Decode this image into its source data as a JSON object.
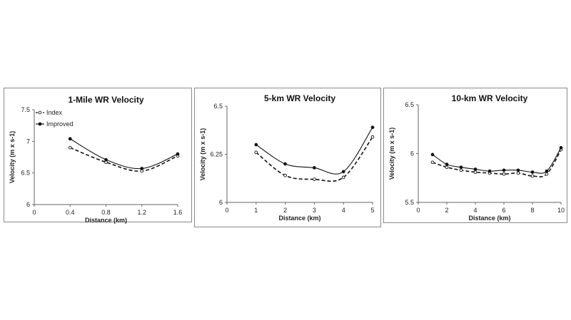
{
  "chart_data": [
    {
      "type": "line",
      "title": "1-Mile WR Velocity",
      "xlabel": "Distance (km)",
      "ylabel": "Velocity (m x s-1)",
      "xlim": [
        0,
        1.6
      ],
      "ylim": [
        6,
        7.5
      ],
      "xticks": [
        "0",
        "0.4",
        "0.8",
        "1.2",
        "1.6"
      ],
      "yticks": [
        "6",
        "6.5",
        "7",
        "7.5"
      ],
      "legend": "top-left",
      "series": [
        {
          "name": "Index",
          "style": "dashed",
          "marker": "open-circle",
          "x": [
            0.4,
            0.8,
            1.2,
            1.6
          ],
          "y": [
            6.9,
            6.67,
            6.53,
            6.77
          ]
        },
        {
          "name": "Improved",
          "style": "solid",
          "marker": "filled-circle",
          "x": [
            0.4,
            0.8,
            1.2,
            1.6
          ],
          "y": [
            7.04,
            6.71,
            6.57,
            6.8
          ]
        }
      ]
    },
    {
      "type": "line",
      "title": "5-km WR Velocity",
      "xlabel": "Distance (km)",
      "ylabel": "Velocity (m x s-1)",
      "xlim": [
        0,
        5
      ],
      "ylim": [
        6,
        6.5
      ],
      "xticks": [
        "0",
        "1",
        "2",
        "3",
        "4",
        "5"
      ],
      "yticks": [
        "6",
        "6.25",
        "6.5"
      ],
      "legend": "none",
      "series": [
        {
          "name": "",
          "style": "dashed",
          "marker": "open-circle",
          "x": [
            1,
            2,
            3,
            4,
            5
          ],
          "y": [
            6.26,
            6.14,
            6.12,
            6.13,
            6.34
          ]
        },
        {
          "name": "",
          "style": "solid",
          "marker": "filled-circle",
          "x": [
            1,
            2,
            3,
            4,
            5
          ],
          "y": [
            6.3,
            6.2,
            6.18,
            6.16,
            6.39
          ]
        }
      ]
    },
    {
      "type": "line",
      "title": "10-km WR Velocity",
      "xlabel": "Distance (km)",
      "ylabel": "Velocity (m x s-1)",
      "xlim": [
        0,
        10
      ],
      "ylim": [
        5.5,
        6.5
      ],
      "xticks": [
        "0",
        "2",
        "4",
        "6",
        "8",
        "10"
      ],
      "yticks": [
        "5.5",
        "6",
        "6.5"
      ],
      "legend": "none",
      "series": [
        {
          "name": "",
          "style": "dashed",
          "marker": "open-circle",
          "x": [
            1,
            2,
            3,
            4,
            5,
            6,
            7,
            8,
            9,
            10
          ],
          "y": [
            5.91,
            5.86,
            5.83,
            5.81,
            5.8,
            5.79,
            5.8,
            5.77,
            5.79,
            6.04
          ]
        },
        {
          "name": "",
          "style": "solid",
          "marker": "filled-circle",
          "x": [
            1,
            2,
            3,
            4,
            5,
            6,
            7,
            8,
            9,
            10
          ],
          "y": [
            5.99,
            5.89,
            5.86,
            5.84,
            5.82,
            5.83,
            5.83,
            5.81,
            5.82,
            6.06
          ]
        }
      ]
    }
  ]
}
